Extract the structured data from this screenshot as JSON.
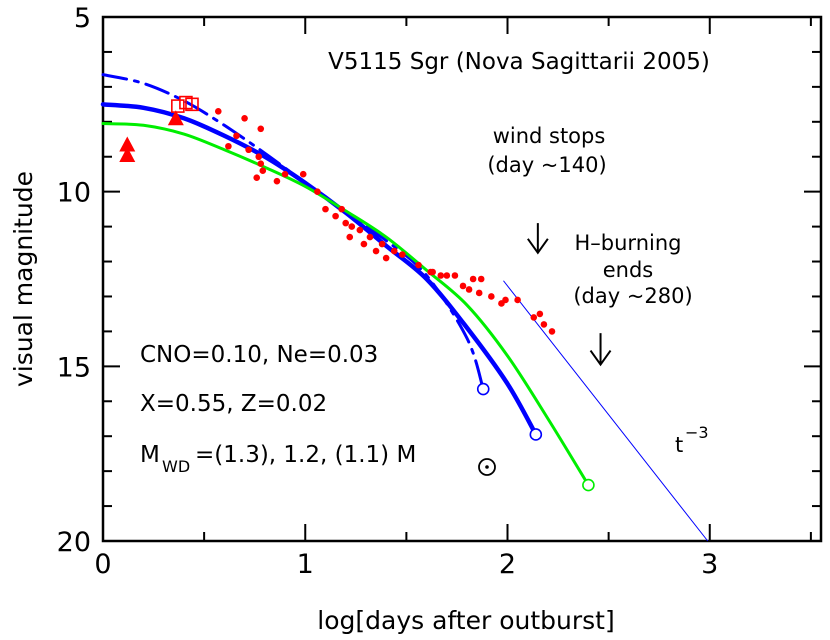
{
  "chart_data": {
    "type": "scatter",
    "title": "V5115 Sgr (Nova Sagittarii 2005)",
    "xlabel": "log[days after outburst]",
    "ylabel": "visual magnitude",
    "xlim": [
      0,
      3.55
    ],
    "ylim": [
      20,
      5
    ],
    "y_axis_inverted": true,
    "x_ticks": [
      0,
      1,
      2,
      3
    ],
    "x_tick_labels": [
      "0",
      "1",
      "2",
      "3"
    ],
    "y_ticks": [
      5,
      10,
      15,
      20
    ],
    "y_tick_labels": [
      "5",
      "10",
      "15",
      "20"
    ],
    "grid": false,
    "colors": {
      "observations": "#ff0000",
      "model_1_3": "#0000ff",
      "model_1_2": "#0000ff",
      "model_1_1": "#00ee00",
      "power_law": "#0000ff"
    },
    "series": [
      {
        "style": "dots",
        "points": [
          [
            0.57,
            7.7
          ],
          [
            0.66,
            8.4
          ],
          [
            0.72,
            8.8
          ],
          [
            0.62,
            8.7
          ],
          [
            0.77,
            9.0
          ],
          [
            0.79,
            9.4
          ],
          [
            0.78,
            9.2
          ],
          [
            0.76,
            9.6
          ],
          [
            0.86,
            9.7
          ],
          [
            0.9,
            9.5
          ],
          [
            0.99,
            9.5
          ],
          [
            1.06,
            10.0
          ],
          [
            1.1,
            10.5
          ],
          [
            1.15,
            10.7
          ],
          [
            1.18,
            10.5
          ],
          [
            1.2,
            10.9
          ],
          [
            1.23,
            11.0
          ],
          [
            1.27,
            11.1
          ],
          [
            1.22,
            11.3
          ],
          [
            1.29,
            11.5
          ],
          [
            1.32,
            11.3
          ],
          [
            1.38,
            11.5
          ],
          [
            1.35,
            11.7
          ],
          [
            1.4,
            11.9
          ],
          [
            1.44,
            11.7
          ],
          [
            1.48,
            11.8
          ],
          [
            1.56,
            12.1
          ],
          [
            1.62,
            12.3
          ],
          [
            1.63,
            12.3
          ],
          [
            1.67,
            12.4
          ],
          [
            1.7,
            12.4
          ],
          [
            1.74,
            12.4
          ],
          [
            1.78,
            12.7
          ],
          [
            1.81,
            12.8
          ],
          [
            1.83,
            12.5
          ],
          [
            1.87,
            12.5
          ],
          [
            1.86,
            12.9
          ],
          [
            1.92,
            13.0
          ],
          [
            1.97,
            13.2
          ],
          [
            1.99,
            13.1
          ],
          [
            2.05,
            13.1
          ],
          [
            2.13,
            13.6
          ],
          [
            2.18,
            13.8
          ],
          [
            2.22,
            14.0
          ],
          [
            2.16,
            13.5
          ],
          [
            0.78,
            8.2
          ],
          [
            0.7,
            7.9
          ]
        ]
      },
      {
        "style": "squares",
        "points": [
          [
            0.37,
            7.55
          ],
          [
            0.41,
            7.45
          ],
          [
            0.44,
            7.5
          ]
        ]
      },
      {
        "style": "triangles",
        "points": [
          [
            0.12,
            8.65
          ],
          [
            0.12,
            8.95
          ],
          [
            0.36,
            7.9
          ]
        ]
      },
      {
        "name": "1.3",
        "style": "dash-dot",
        "points": [
          [
            0,
            6.65
          ],
          [
            0.2,
            6.9
          ],
          [
            0.4,
            7.4
          ],
          [
            0.6,
            8.1
          ],
          [
            0.8,
            8.9
          ],
          [
            1.0,
            9.75
          ],
          [
            1.2,
            10.6
          ],
          [
            1.4,
            11.4
          ],
          [
            1.6,
            12.4
          ],
          [
            1.8,
            14.2
          ],
          [
            1.88,
            15.65
          ]
        ],
        "end_marker": [
          1.88,
          15.65
        ]
      },
      {
        "name": "1.2",
        "style": "solid-thick",
        "points": [
          [
            0,
            7.5
          ],
          [
            0.2,
            7.6
          ],
          [
            0.4,
            7.9
          ],
          [
            0.6,
            8.4
          ],
          [
            0.8,
            9.0
          ],
          [
            1.0,
            9.75
          ],
          [
            1.2,
            10.6
          ],
          [
            1.4,
            11.55
          ],
          [
            1.6,
            12.5
          ],
          [
            1.8,
            13.9
          ],
          [
            2.0,
            15.5
          ],
          [
            2.14,
            16.95
          ]
        ],
        "end_marker": [
          2.14,
          16.95
        ]
      },
      {
        "name": "1.1",
        "style": "solid",
        "points": [
          [
            0,
            8.05
          ],
          [
            0.2,
            8.1
          ],
          [
            0.4,
            8.35
          ],
          [
            0.6,
            8.8
          ],
          [
            0.8,
            9.3
          ],
          [
            1.0,
            9.85
          ],
          [
            1.2,
            10.55
          ],
          [
            1.4,
            11.3
          ],
          [
            1.6,
            12.25
          ],
          [
            1.8,
            13.25
          ],
          [
            2.0,
            14.7
          ],
          [
            2.2,
            16.5
          ],
          [
            2.4,
            18.4
          ]
        ],
        "end_marker": [
          2.4,
          18.4
        ]
      },
      {
        "name": "t^-3",
        "style": "thin-line",
        "points": [
          [
            1.98,
            12.55
          ],
          [
            2.99,
            20.0
          ]
        ]
      }
    ],
    "annotations": {
      "title": "V5115 Sgr (Nova Sagittarii 2005)",
      "wind_line1": "wind stops",
      "wind_line2": "(day ~140)",
      "h_line1": "H–burning",
      "h_line2": "ends",
      "h_line3": "(day ~280)",
      "comp1": "CNO=0.10, Ne=0.03",
      "comp2": "X=0.55, Z=0.02",
      "mass_prefix": "M",
      "mass_sub": "WD",
      "mass_values": "=(1.3), 1.2, (1.1) M",
      "tpow_base": "t",
      "tpow_exp": "−3"
    },
    "arrows": [
      {
        "x": 2.15,
        "from_y": 10.9,
        "to_y": 11.75
      },
      {
        "x": 2.46,
        "from_y": 14.05,
        "to_y": 14.95
      }
    ]
  }
}
